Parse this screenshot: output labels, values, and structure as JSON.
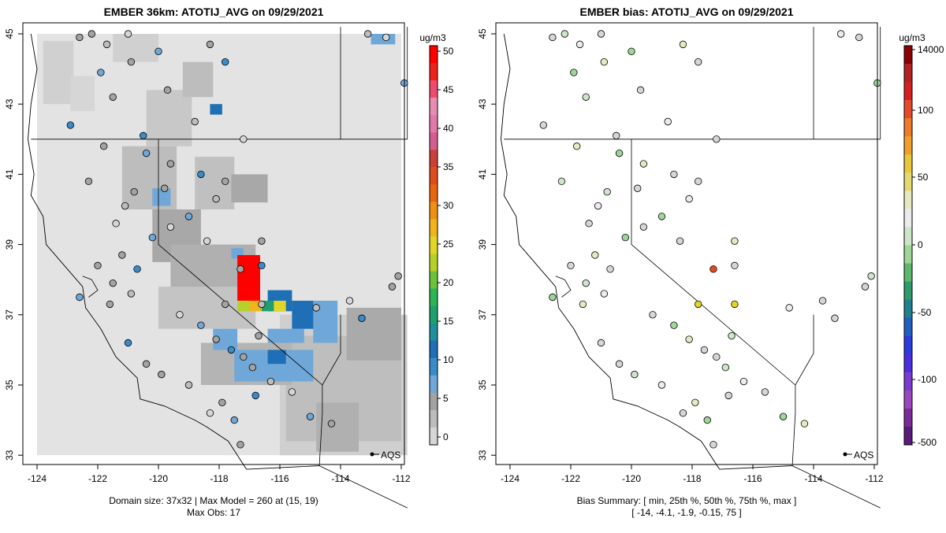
{
  "chart_data": [
    {
      "type": "heatmap",
      "title": "EMBER 36km: ATOTIJ_AVG on 09/29/2021",
      "xlim": [
        -124.2,
        -111.8
      ],
      "ylim": [
        32.7,
        45.2
      ],
      "x_ticks": [
        "-124",
        "-122",
        "-120",
        "-118",
        "-116",
        "-114",
        "-112"
      ],
      "y_ticks": [
        "33",
        "35",
        "37",
        "39",
        "41",
        "43",
        "45"
      ],
      "colorbar": {
        "unit": "ug/m3",
        "tick_labels": [
          "0",
          "5",
          "10",
          "15",
          "20",
          "25",
          "30",
          "35",
          "40",
          "45",
          "50"
        ],
        "colors": [
          "#d6d6d6",
          "#bdbdbd",
          "#a3a3a3",
          "#6fa8d8",
          "#3a8cc8",
          "#1e6fb5",
          "#1f8f9b",
          "#1ea06e",
          "#2db457",
          "#6cc23a",
          "#b7d02c",
          "#e1d528",
          "#f0b51c",
          "#ef8f15",
          "#e8660f",
          "#dd4e1b",
          "#c9403a",
          "#d55c8e",
          "#e07aa8",
          "#e88cb4",
          "#ee4c6e",
          "#f0201a",
          "#ff0000"
        ]
      },
      "footer": [
        "Domain size: 37x32 | Max Model = 260 at (15, 19)",
        "Max Obs: 17"
      ],
      "annotation": "AQS"
    },
    {
      "type": "scatter",
      "title": "EMBER bias: ATOTIJ_AVG on 09/29/2021",
      "xlim": [
        -124.2,
        -111.8
      ],
      "ylim": [
        32.7,
        45.2
      ],
      "x_ticks": [
        "-124",
        "-122",
        "-120",
        "-118",
        "-116",
        "-114",
        "-112"
      ],
      "y_ticks": [
        "33",
        "35",
        "37",
        "39",
        "41",
        "43",
        "45"
      ],
      "colorbar": {
        "unit": "ug/m3",
        "tick_labels": [
          "14000",
          "100",
          "50",
          "0",
          "-50",
          "-100",
          "-500"
        ],
        "colors": [
          "#8b0000",
          "#b22222",
          "#d62020",
          "#e64a2a",
          "#ee7a2a",
          "#f0a02a",
          "#e8c83a",
          "#e6d870",
          "#e8e8c0",
          "#ececec",
          "#cde6c8",
          "#9ed69a",
          "#5bb86a",
          "#2f9a6a",
          "#1f8090",
          "#1f5fc0",
          "#2a3ce0",
          "#4b2ee0",
          "#7b3ad0",
          "#9b46c0",
          "#7a2a9a",
          "#5a1a7a"
        ]
      },
      "footer": [
        "Bias Summary: [ min, 25th %, 50th %, 75th %, max ]",
        "[ -14,   -4.1,   -1.9,   -0.15,   75 ]"
      ],
      "annotation": "AQS"
    }
  ]
}
